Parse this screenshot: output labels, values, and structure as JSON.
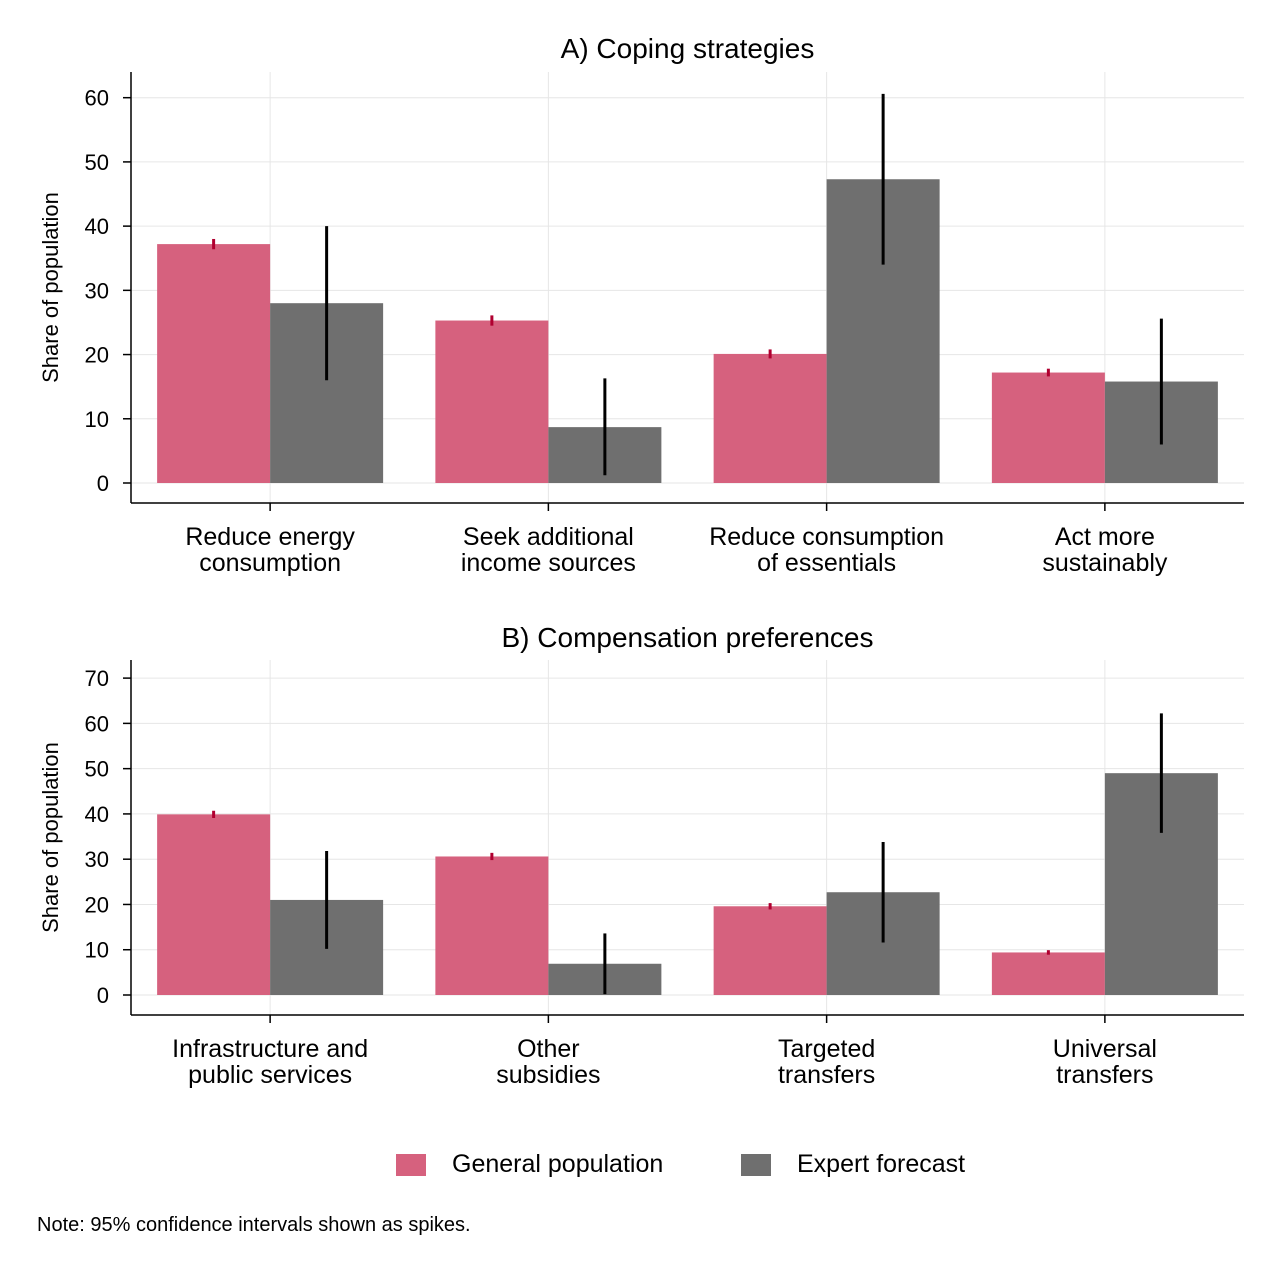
{
  "colors": {
    "general": "#d6617e",
    "expert": "#6f6f6f",
    "general_ci": "#b00030",
    "expert_ci": "#000000",
    "grid": "#e6e6e6"
  },
  "legend": {
    "general_label": "General population",
    "expert_label": "Expert forecast",
    "placement": "bottom"
  },
  "note": "Note: 95% confidence intervals shown as spikes.",
  "chart_data": [
    {
      "type": "bar",
      "title": "A) Coping strategies",
      "ylabel": "Share of population",
      "xlabel": "",
      "ylim": [
        0,
        64
      ],
      "yticks": [
        0,
        10,
        20,
        30,
        40,
        50,
        60
      ],
      "grid": true,
      "categories": [
        [
          "Reduce energy",
          "consumption"
        ],
        [
          "Seek additional",
          "income sources"
        ],
        [
          "Reduce consumption",
          "of essentials"
        ],
        [
          "Act more",
          "sustainably"
        ]
      ],
      "series": [
        {
          "name": "General population",
          "values": [
            37.2,
            25.3,
            20.1,
            17.2
          ],
          "ci_low": [
            36.4,
            24.5,
            19.4,
            16.6
          ],
          "ci_high": [
            38.0,
            26.1,
            20.8,
            17.8
          ]
        },
        {
          "name": "Expert forecast",
          "values": [
            28.0,
            8.7,
            47.3,
            15.8
          ],
          "ci_low": [
            16.0,
            1.2,
            34.0,
            6.0
          ],
          "ci_high": [
            40.0,
            16.3,
            60.6,
            25.6
          ]
        }
      ]
    },
    {
      "type": "bar",
      "title": "B) Compensation preferences",
      "ylabel": "Share of population",
      "xlabel": "",
      "ylim": [
        0,
        74
      ],
      "yticks": [
        0,
        10,
        20,
        30,
        40,
        50,
        60,
        70
      ],
      "grid": true,
      "categories": [
        [
          "Infrastructure and",
          "public services"
        ],
        [
          "Other",
          "subsidies"
        ],
        [
          "Targeted",
          "transfers"
        ],
        [
          "Universal",
          "transfers"
        ]
      ],
      "series": [
        {
          "name": "General population",
          "values": [
            39.9,
            30.6,
            19.6,
            9.4
          ],
          "ci_low": [
            39.1,
            29.8,
            18.9,
            8.9
          ],
          "ci_high": [
            40.7,
            31.4,
            20.3,
            9.9
          ]
        },
        {
          "name": "Expert forecast",
          "values": [
            21.0,
            6.9,
            22.7,
            49.0
          ],
          "ci_low": [
            10.2,
            0.2,
            11.6,
            35.8
          ],
          "ci_high": [
            31.8,
            13.6,
            33.8,
            62.2
          ]
        }
      ]
    }
  ]
}
